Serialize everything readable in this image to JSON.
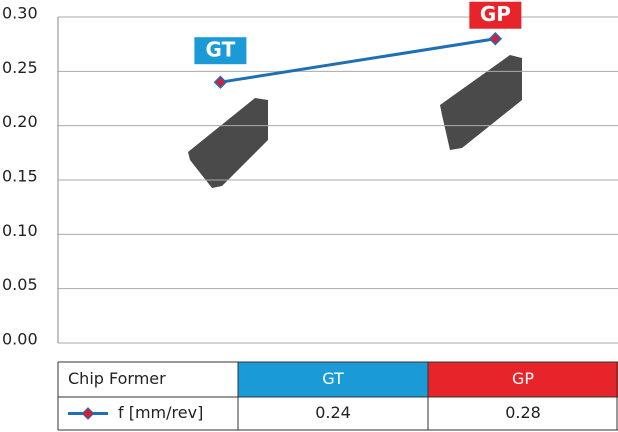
{
  "chart_data": {
    "type": "line",
    "categories": [
      "GT",
      "GP"
    ],
    "category_colors": [
      "#1a9bd7",
      "#e8242b"
    ],
    "series": [
      {
        "name": "f [mm/rev]",
        "color": "#1f6fb5",
        "marker_color": "#d3203a",
        "values": [
          0.24,
          0.28
        ]
      }
    ],
    "ylim": [
      0,
      0.3
    ],
    "yticks": [
      {
        "value": 0,
        "label": "0.00"
      },
      {
        "value": 0.05,
        "label": "0.05"
      },
      {
        "value": 0.1,
        "label": "0.10"
      },
      {
        "value": 0.15,
        "label": "0.15"
      },
      {
        "value": 0.2,
        "label": "0.20"
      },
      {
        "value": 0.25,
        "label": "0.25"
      },
      {
        "value": 0.3,
        "label": "0.30"
      }
    ],
    "grid": true,
    "table_header": "Chip Former"
  }
}
